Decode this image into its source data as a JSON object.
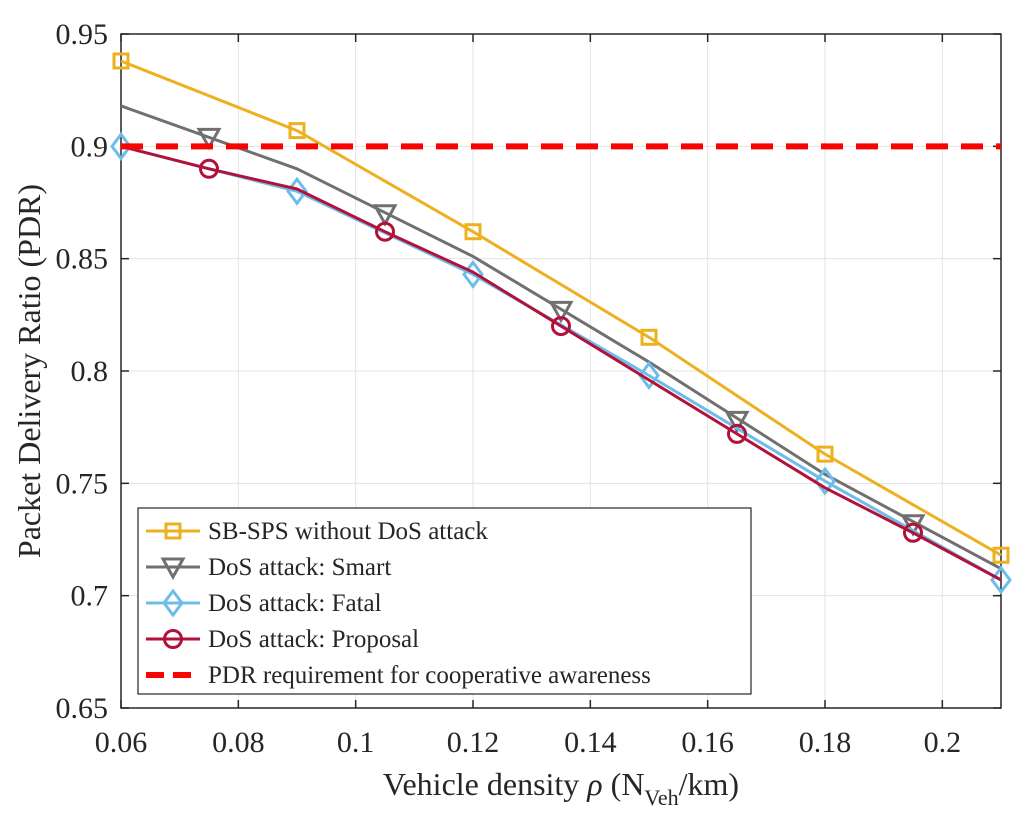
{
  "chart_data": {
    "type": "line",
    "xlabel": {
      "prefix": "Vehicle density ",
      "symbol": "ρ",
      "unit_open": " (N",
      "unit_sub": "Veh",
      "unit_close": "/km)"
    },
    "ylabel": "Packet Delivery Ratio (PDR)",
    "xlim": [
      0.06,
      0.21
    ],
    "ylim": [
      0.65,
      0.95
    ],
    "xticks": [
      "0.06",
      "0.08",
      "0.1",
      "0.12",
      "0.14",
      "0.16",
      "0.18",
      "0.2"
    ],
    "yticks": [
      "0.65",
      "0.7",
      "0.75",
      "0.8",
      "0.85",
      "0.9",
      "0.95"
    ],
    "grid": true,
    "legend_position": "bottom-left",
    "series": [
      {
        "name": "SB-SPS without DoS attack",
        "color": "#EDB120",
        "marker": "square",
        "x": [
          0.06,
          0.09,
          0.12,
          0.15,
          0.18,
          0.21
        ],
        "y": [
          0.938,
          0.907,
          0.862,
          0.815,
          0.763,
          0.718
        ],
        "marker_x": [
          0.06,
          0.09,
          0.12,
          0.15,
          0.18,
          0.21
        ],
        "marker_y": [
          0.938,
          0.907,
          0.862,
          0.815,
          0.763,
          0.718
        ]
      },
      {
        "name": "DoS attack: Smart",
        "color": "#707070",
        "marker": "triangle-down",
        "x": [
          0.06,
          0.09,
          0.12,
          0.15,
          0.18,
          0.21
        ],
        "y": [
          0.918,
          0.89,
          0.851,
          0.804,
          0.754,
          0.712
        ],
        "marker_x": [
          0.075,
          0.105,
          0.135,
          0.165,
          0.195
        ],
        "marker_y": [
          0.904,
          0.87,
          0.827,
          0.778,
          0.732
        ]
      },
      {
        "name": "DoS attack: Fatal",
        "color": "#6CBDEA",
        "marker": "diamond",
        "x": [
          0.06,
          0.09,
          0.12,
          0.15,
          0.18,
          0.21
        ],
        "y": [
          0.9,
          0.88,
          0.843,
          0.798,
          0.751,
          0.707
        ],
        "marker_x": [
          0.06,
          0.09,
          0.12,
          0.15,
          0.18,
          0.21
        ],
        "marker_y": [
          0.9,
          0.88,
          0.843,
          0.798,
          0.751,
          0.707
        ]
      },
      {
        "name": "DoS attack: Proposal",
        "color": "#B2123A",
        "marker": "circle",
        "x": [
          0.06,
          0.075,
          0.09,
          0.105,
          0.12,
          0.135,
          0.15,
          0.165,
          0.18,
          0.195,
          0.21
        ],
        "y": [
          0.9,
          0.89,
          0.881,
          0.862,
          0.844,
          0.82,
          0.796,
          0.772,
          0.748,
          0.728,
          0.707
        ],
        "marker_x": [
          0.075,
          0.105,
          0.135,
          0.165,
          0.195
        ],
        "marker_y": [
          0.89,
          0.862,
          0.82,
          0.772,
          0.728
        ]
      },
      {
        "name": "PDR requirement for cooperative awareness",
        "color": "#FF0000",
        "marker": "none",
        "dashed": true,
        "x": [
          0.06,
          0.21
        ],
        "y": [
          0.9,
          0.9
        ],
        "marker_x": [],
        "marker_y": []
      }
    ]
  }
}
